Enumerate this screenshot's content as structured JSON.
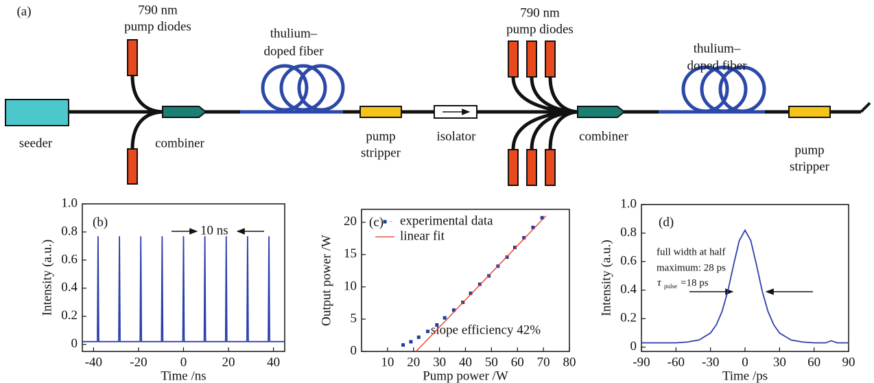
{
  "diagram": {
    "panel_label": "(a)",
    "labels": [
      "790 nm",
      "pump diodes",
      "thulium–",
      "doped fiber",
      "seeder",
      "combiner",
      "pump",
      "stripper",
      "isolator",
      "790 nm",
      "pump diodes",
      "thulium–",
      "doped fiber",
      "combiner",
      "pump",
      "stripper"
    ]
  },
  "chart_data": [
    {
      "type": "line",
      "x_label": "Time /ns",
      "y_label": "Intensity (a.u.)",
      "annotations": [
        "(b)",
        "10 ns"
      ],
      "xlim": [
        -45,
        45
      ],
      "xticks": [
        -40,
        -20,
        0,
        20,
        40
      ],
      "ylim": [
        -0.05,
        1.0
      ],
      "yticks": [
        0,
        0.2,
        0.4,
        0.6,
        0.8,
        {
          "value": 1,
          "label": "1.0"
        }
      ],
      "series": [
        {
          "type": "line",
          "color": "#2b3fa8",
          "x": [
            -45,
            -38.3,
            -38,
            -37.7,
            -28.8,
            -28.5,
            -28.2,
            -19.3,
            -19,
            -18.7,
            -9.8,
            -9.5,
            -9.2,
            -0.3,
            0,
            0.3,
            9.2,
            9.5,
            9.8,
            18.7,
            19,
            19.3,
            28.2,
            28.5,
            28.8,
            37.7,
            38,
            38.3,
            45
          ],
          "values": [
            0.02,
            0.02,
            0.77,
            0.02,
            0.02,
            0.77,
            0.02,
            0.02,
            0.77,
            0.02,
            0.02,
            0.77,
            0.02,
            0.02,
            0.77,
            0.02,
            0.02,
            0.77,
            0.02,
            0.02,
            0.77,
            0.02,
            0.02,
            0.77,
            0.02,
            0.02,
            0.77,
            0.02,
            0.02
          ]
        }
      ]
    },
    {
      "type": "scatter",
      "x_label": "Pump power /W",
      "y_label": "Output power /W",
      "annotations": [
        "(c)",
        "slope efficiency 42%"
      ],
      "legend": "upper left",
      "xlim": [
        0,
        80
      ],
      "xticks": [
        10,
        20,
        30,
        40,
        50,
        60,
        70,
        80
      ],
      "ylim": [
        0,
        22
      ],
      "yticks": [
        0,
        5,
        10,
        15,
        20
      ],
      "series": [
        {
          "name": "experimental data",
          "type": "scatter",
          "color": "#1f3c99",
          "x": [
            16,
            19,
            22,
            25.5,
            29,
            32,
            35.5,
            39,
            42,
            45.5,
            49,
            52.5,
            56,
            59,
            62.5,
            66,
            69.5
          ],
          "values": [
            1.0,
            1.5,
            2.2,
            3.1,
            4.1,
            5.2,
            6.4,
            7.6,
            9.0,
            10.4,
            11.7,
            13.2,
            14.6,
            16.1,
            17.6,
            19.2,
            20.7
          ]
        },
        {
          "name": "linear fit",
          "type": "line",
          "color": "#e8321e",
          "x": [
            21,
            71
          ],
          "values": [
            0,
            21
          ]
        }
      ]
    },
    {
      "type": "line",
      "x_label": "Time /ps",
      "y_label": "Intensity (a.u.)",
      "annotations": [
        "(d)",
        "full width at half",
        "maximum: 28 ps",
        "τ",
        "pulse",
        "=18 ps"
      ],
      "xlim": [
        -90,
        90
      ],
      "xticks": [
        -90,
        -60,
        -30,
        0,
        30,
        60,
        90
      ],
      "ylim": [
        -0.03,
        1.0
      ],
      "yticks": [
        0,
        0.2,
        0.4,
        0.6,
        0.8,
        {
          "value": 1,
          "label": "1.0"
        }
      ],
      "series": [
        {
          "type": "line",
          "color": "#2b3fa8",
          "x": [
            -90,
            -80,
            -70,
            -60,
            -50,
            -40,
            -30,
            -25,
            -20,
            -15,
            -10,
            -5,
            0,
            5,
            10,
            15,
            20,
            25,
            30,
            40,
            50,
            60,
            70,
            75,
            80,
            90
          ],
          "values": [
            0.03,
            0.03,
            0.03,
            0.03,
            0.036,
            0.05,
            0.099,
            0.156,
            0.249,
            0.391,
            0.575,
            0.747,
            0.82,
            0.747,
            0.575,
            0.391,
            0.249,
            0.156,
            0.099,
            0.05,
            0.036,
            0.03,
            0.03,
            0.045,
            0.03,
            0.03
          ]
        }
      ]
    }
  ]
}
